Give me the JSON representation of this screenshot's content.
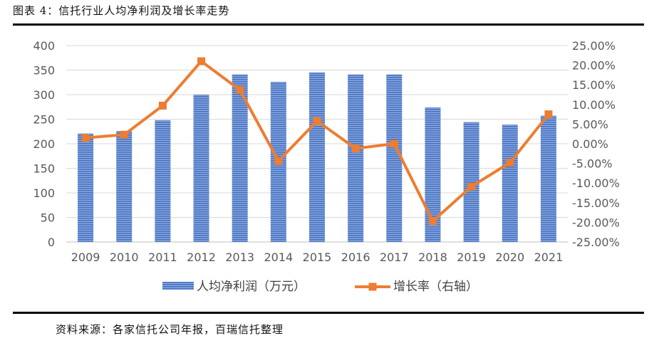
{
  "figure_title": "图表 4：信托行业人均净利润及增长率走势",
  "source_note": "资料来源：各家信托公司年报，百瑞信托整理",
  "chart_data": {
    "type": "bar",
    "title": "",
    "categories": [
      "2009",
      "2010",
      "2011",
      "2012",
      "2013",
      "2014",
      "2015",
      "2016",
      "2017",
      "2018",
      "2019",
      "2020",
      "2021"
    ],
    "series": [
      {
        "name": "人均净利润（万元）",
        "type": "bar",
        "axis": "left",
        "color": "#4472C4",
        "values": [
          221,
          226,
          248,
          300,
          341,
          326,
          345,
          341,
          341,
          274,
          244,
          239,
          257
        ]
      },
      {
        "name": "增长率（右轴）",
        "type": "line",
        "axis": "right",
        "color": "#ED7D31",
        "values": [
          1.5,
          2.3,
          9.7,
          21.0,
          13.7,
          -4.4,
          5.8,
          -1.2,
          0.0,
          -19.7,
          -10.9,
          -4.8,
          7.5
        ]
      }
    ],
    "y_left": {
      "range": [
        0,
        400
      ],
      "ticks": [
        "0",
        "50",
        "100",
        "150",
        "200",
        "250",
        "300",
        "350",
        "400"
      ]
    },
    "y_right": {
      "range": [
        -25,
        25
      ],
      "ticks": [
        "-25.00%",
        "-20.00%",
        "-15.00%",
        "-10.00%",
        "-5.00%",
        "0.00%",
        "5.00%",
        "10.00%",
        "15.00%",
        "20.00%",
        "25.00%"
      ]
    },
    "grid": true,
    "legend": "bottom"
  }
}
